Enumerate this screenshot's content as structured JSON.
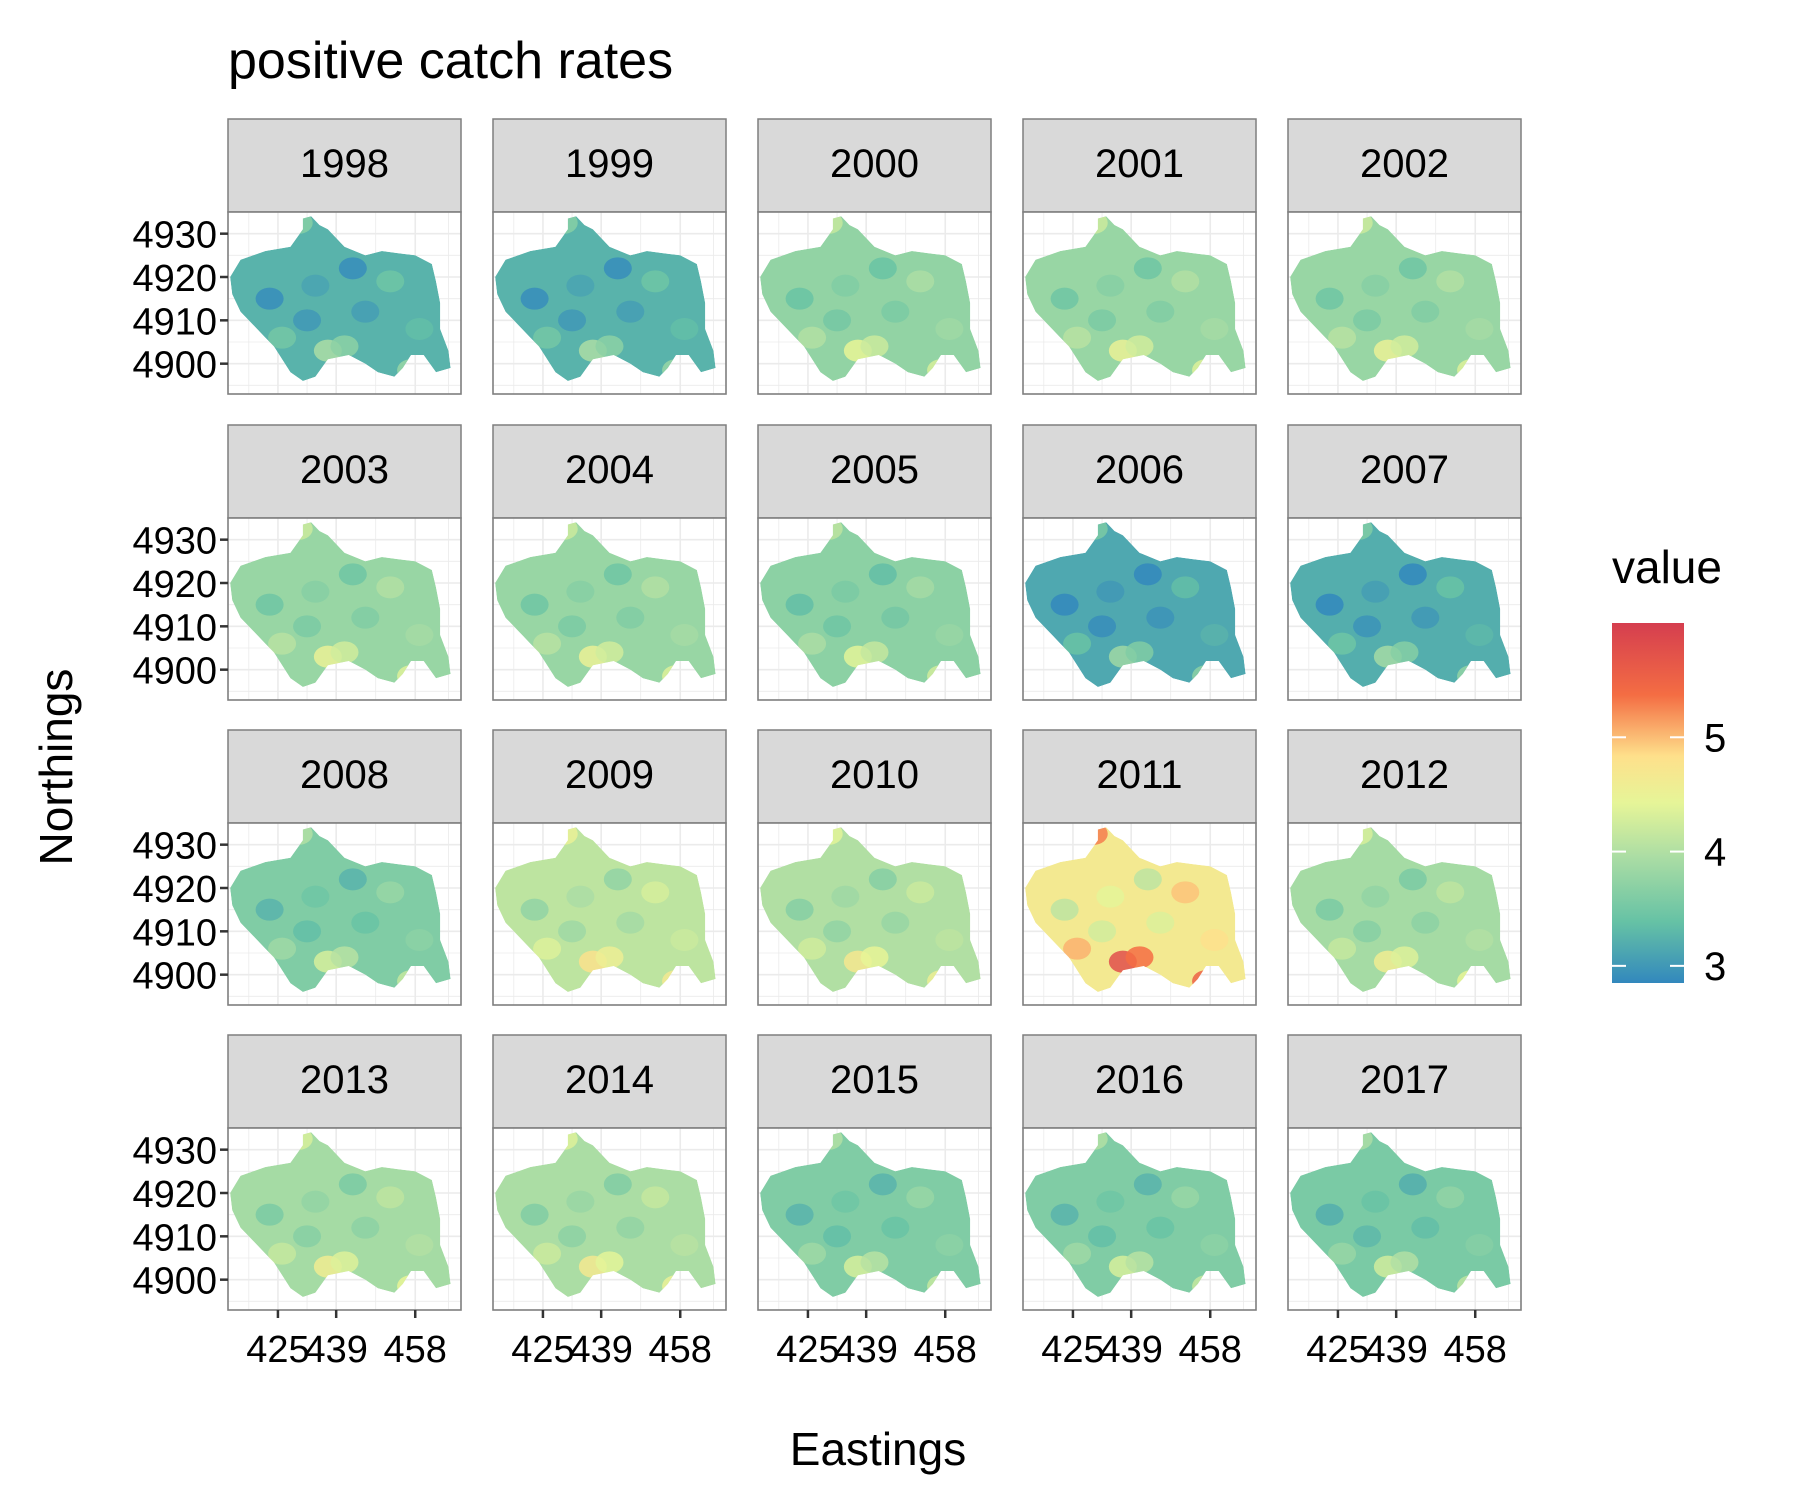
{
  "chart_data": {
    "type": "heatmap",
    "title": "positive catch rates",
    "xlabel": "Eastings",
    "ylabel": "Northings",
    "legend": {
      "title": "value",
      "position": "right",
      "ticks": [
        3,
        4,
        5
      ],
      "range": [
        2.85,
        6.0
      ],
      "palette": "Spectral (reversed)"
    },
    "x_ticks": [
      425,
      439,
      458
    ],
    "y_ticks": [
      4930,
      4920,
      4910,
      4900
    ],
    "xlim": [
      413,
      469
    ],
    "ylim": [
      4893,
      4935
    ],
    "grid": true,
    "facet_layout": {
      "rows": 4,
      "cols": 5
    },
    "panels": [
      {
        "year": "1998",
        "mean_value": 3.25
      },
      {
        "year": "1999",
        "mean_value": 3.25
      },
      {
        "year": "2000",
        "mean_value": 3.75
      },
      {
        "year": "2001",
        "mean_value": 3.8
      },
      {
        "year": "2002",
        "mean_value": 3.8
      },
      {
        "year": "2003",
        "mean_value": 3.8
      },
      {
        "year": "2004",
        "mean_value": 3.8
      },
      {
        "year": "2005",
        "mean_value": 3.7
      },
      {
        "year": "2006",
        "mean_value": 3.15
      },
      {
        "year": "2007",
        "mean_value": 3.2
      },
      {
        "year": "2008",
        "mean_value": 3.6
      },
      {
        "year": "2009",
        "mean_value": 4.1
      },
      {
        "year": "2010",
        "mean_value": 4.0
      },
      {
        "year": "2011",
        "mean_value": 4.65
      },
      {
        "year": "2012",
        "mean_value": 3.9
      },
      {
        "year": "2013",
        "mean_value": 3.9
      },
      {
        "year": "2014",
        "mean_value": 3.95
      },
      {
        "year": "2015",
        "mean_value": 3.6
      },
      {
        "year": "2016",
        "mean_value": 3.6
      },
      {
        "year": "2017",
        "mean_value": 3.55
      }
    ]
  }
}
